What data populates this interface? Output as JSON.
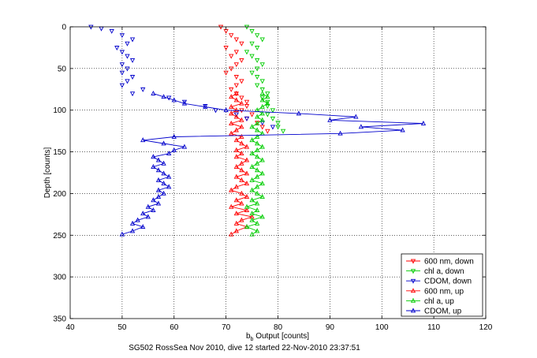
{
  "chart_data": {
    "type": "scatter",
    "title": "",
    "xlabel_prefix": "b",
    "xlabel_subscript": "b",
    "xlabel_suffix": " Output [counts]",
    "ylabel": "Depth [counts]",
    "caption": "SG502 RossSea Nov 2010, dive 12 started 22-Nov-2010 23:37:51",
    "xlim": [
      40,
      120
    ],
    "ylim": [
      0,
      350
    ],
    "y_reversed": true,
    "grid": true,
    "legend_position": "bottom-right",
    "xticks": [
      "40",
      "50",
      "60",
      "70",
      "80",
      "90",
      "100",
      "110",
      "120"
    ],
    "yticks": [
      "0",
      "50",
      "100",
      "150",
      "200",
      "250",
      "300",
      "350"
    ],
    "series": [
      {
        "name": "600 nm, down",
        "color": "#ff0000",
        "marker": "triangle-down",
        "x": [
          69,
          70,
          71,
          72,
          73,
          70,
          72,
          71,
          73,
          72,
          71,
          70,
          72,
          73,
          72,
          71,
          72,
          73,
          74,
          74,
          73,
          75,
          74,
          76,
          77,
          78
        ],
        "y": [
          0,
          5,
          10,
          15,
          20,
          25,
          30,
          35,
          40,
          45,
          50,
          55,
          60,
          65,
          70,
          75,
          80,
          85,
          90,
          95,
          100,
          105,
          110,
          115,
          120,
          125
        ]
      },
      {
        "name": "chl a, down",
        "color": "#00cc00",
        "marker": "triangle-down",
        "x": [
          74,
          75,
          76,
          77,
          75,
          76,
          74,
          75,
          76,
          77,
          76,
          75,
          76,
          77,
          76,
          77,
          78,
          77,
          78,
          78,
          79,
          78,
          79,
          80,
          80,
          81
        ],
        "y": [
          0,
          5,
          10,
          15,
          20,
          25,
          30,
          35,
          40,
          45,
          50,
          55,
          60,
          65,
          70,
          75,
          80,
          85,
          90,
          95,
          100,
          105,
          110,
          115,
          120,
          125
        ]
      },
      {
        "name": "CDOM, down",
        "color": "#0000cc",
        "marker": "triangle-down",
        "x": [
          44,
          46,
          48,
          50,
          52,
          51,
          49,
          50,
          51,
          52,
          50,
          51,
          50,
          52,
          51,
          50,
          54,
          52,
          59,
          62,
          66,
          68,
          72,
          74,
          77,
          79
        ],
        "y": [
          0,
          2,
          5,
          10,
          15,
          20,
          25,
          30,
          35,
          40,
          45,
          50,
          55,
          60,
          65,
          70,
          75,
          80,
          85,
          90,
          95,
          100,
          105,
          110,
          115,
          120
        ]
      },
      {
        "name": "600 nm, up",
        "color": "#ff0000",
        "marker": "triangle-up",
        "x": [
          71,
          72,
          74,
          72,
          73,
          75,
          72,
          74,
          71,
          73,
          72,
          74,
          73,
          71,
          72,
          74,
          73,
          72,
          74,
          73,
          72,
          73,
          74,
          72,
          73,
          72,
          74,
          73,
          72,
          73,
          71,
          72,
          73,
          71,
          73,
          72,
          71,
          72,
          71,
          73,
          72,
          71,
          72
        ],
        "y": [
          249,
          245,
          240,
          236,
          232,
          228,
          224,
          220,
          216,
          212,
          208,
          204,
          200,
          196,
          192,
          188,
          184,
          180,
          176,
          172,
          168,
          164,
          160,
          156,
          152,
          148,
          144,
          140,
          136,
          132,
          128,
          124,
          120,
          116,
          112,
          108,
          104,
          100,
          96,
          92,
          88,
          84,
          80
        ]
      },
      {
        "name": "chl a, up",
        "color": "#00cc00",
        "marker": "triangle-up",
        "x": [
          75,
          76,
          74,
          76,
          75,
          77,
          75,
          76,
          74,
          76,
          75,
          77,
          76,
          75,
          76,
          77,
          75,
          76,
          77,
          76,
          75,
          76,
          77,
          76,
          75,
          76,
          77,
          76,
          75,
          76,
          77,
          76,
          75,
          76,
          77,
          76,
          77,
          76,
          77,
          78,
          77,
          78,
          77
        ],
        "y": [
          249,
          245,
          240,
          236,
          232,
          228,
          224,
          220,
          216,
          212,
          208,
          204,
          200,
          196,
          192,
          188,
          184,
          180,
          176,
          172,
          168,
          164,
          160,
          156,
          152,
          148,
          144,
          140,
          136,
          132,
          128,
          124,
          120,
          116,
          112,
          108,
          104,
          100,
          96,
          92,
          88,
          84,
          80
        ]
      },
      {
        "name": "CDOM, up",
        "color": "#0000cc",
        "marker": "triangle-up",
        "x": [
          50,
          52,
          54,
          52,
          53,
          55,
          54,
          56,
          55,
          57,
          56,
          57,
          58,
          57,
          59,
          58,
          57,
          59,
          58,
          57,
          56,
          58,
          57,
          56,
          59,
          60,
          62,
          58,
          54,
          60,
          92,
          104,
          96,
          108,
          90,
          95,
          84,
          70,
          66,
          62,
          60,
          58,
          56
        ],
        "y": [
          249,
          245,
          240,
          236,
          232,
          228,
          224,
          220,
          216,
          212,
          208,
          204,
          200,
          196,
          192,
          188,
          184,
          180,
          176,
          172,
          168,
          164,
          160,
          156,
          152,
          148,
          144,
          140,
          136,
          132,
          128,
          124,
          120,
          116,
          112,
          108,
          104,
          100,
          96,
          92,
          88,
          84,
          80
        ]
      }
    ]
  }
}
